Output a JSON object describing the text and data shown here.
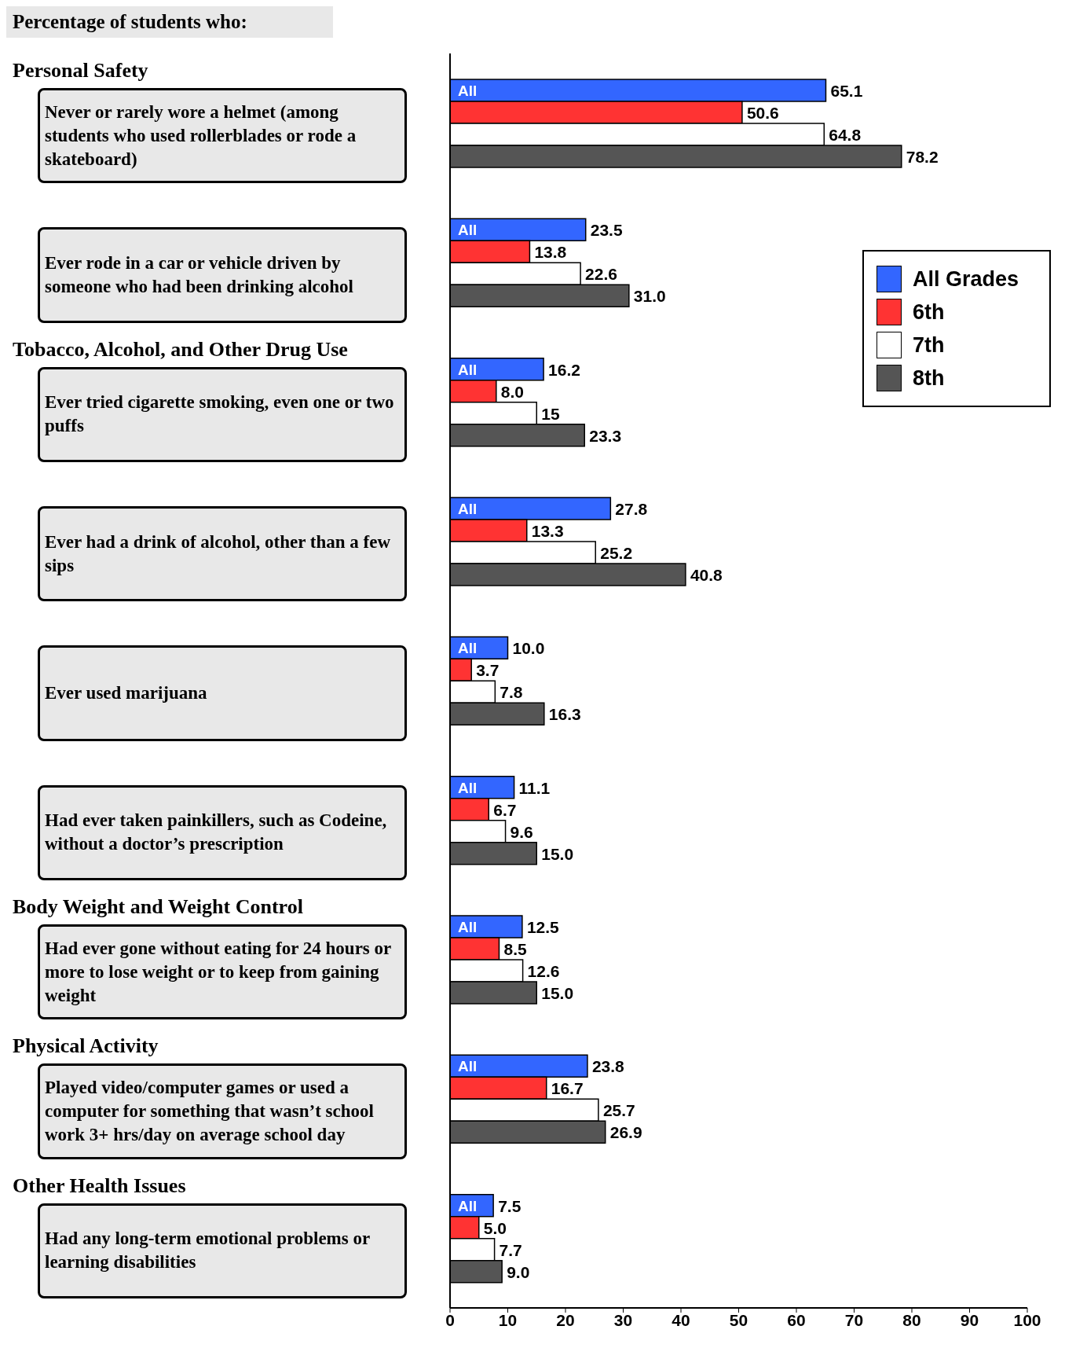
{
  "chart_data": {
    "type": "bar",
    "orientation": "horizontal",
    "title": "Percentage of students who:",
    "categories": [
      "Never or rarely wore a helmet (among students who used rollerblades or rode a skateboard)",
      "Ever rode in a car or vehicle driven by someone who had been drinking alcohol",
      "Ever tried cigarette smoking, even one or two puffs",
      "Ever had a drink of alcohol, other than a few sips",
      "Ever used marijuana",
      "Had ever taken painkillers, such as Codeine, without a doctor’s prescription",
      "Had ever gone without eating for 24 hours or more to lose weight or to keep from gaining weight",
      "Played video/computer games or used a computer for something that wasn’t school work 3+ hrs/day on average school day",
      "Had any long-term emotional problems or learning disabilities"
    ],
    "series": [
      {
        "name": "All Grades",
        "color": "#3366ff",
        "values": [
          65.1,
          23.5,
          16.2,
          27.8,
          10.0,
          11.1,
          12.5,
          23.8,
          7.5
        ],
        "value_labels": [
          "65.1",
          "23.5",
          "16.2",
          "27.8",
          "10.0",
          "11.1",
          "12.5",
          "23.8",
          "7.5"
        ]
      },
      {
        "name": "6th",
        "color": "#ff3333",
        "values": [
          50.6,
          13.8,
          8.0,
          13.3,
          3.7,
          6.7,
          8.5,
          16.7,
          5.0
        ],
        "value_labels": [
          "50.6",
          "13.8",
          "8.0",
          "13.3",
          "3.7",
          "6.7",
          "8.5",
          "16.7",
          "5.0"
        ]
      },
      {
        "name": "7th",
        "color": "#ffffff",
        "values": [
          64.8,
          22.6,
          15,
          25.2,
          7.8,
          9.6,
          12.6,
          25.7,
          7.7
        ],
        "value_labels": [
          "64.8",
          "22.6",
          "15",
          "25.2",
          "7.8",
          "9.6",
          "12.6",
          "25.7",
          "7.7"
        ]
      },
      {
        "name": "8th",
        "color": "#555555",
        "values": [
          78.2,
          31.0,
          23.3,
          40.8,
          16.3,
          15.0,
          15.0,
          26.9,
          9.0
        ],
        "value_labels": [
          "78.2",
          "31.0",
          "23.3",
          "40.8",
          "16.3",
          "15.0",
          "15.0",
          "26.9",
          "9.0"
        ]
      }
    ],
    "annotations": [
      "Personal Safety",
      "Tobacco, Alcohol, and Other Drug Use",
      "Body Weight and Weight Control",
      "Physical Activity",
      "Other Health Issues",
      "All"
    ],
    "xlim": [
      0,
      100
    ],
    "xticks": [
      0,
      10,
      20,
      30,
      40,
      50,
      60,
      70,
      80,
      90,
      100
    ],
    "legend": "top right",
    "grid": false
  }
}
